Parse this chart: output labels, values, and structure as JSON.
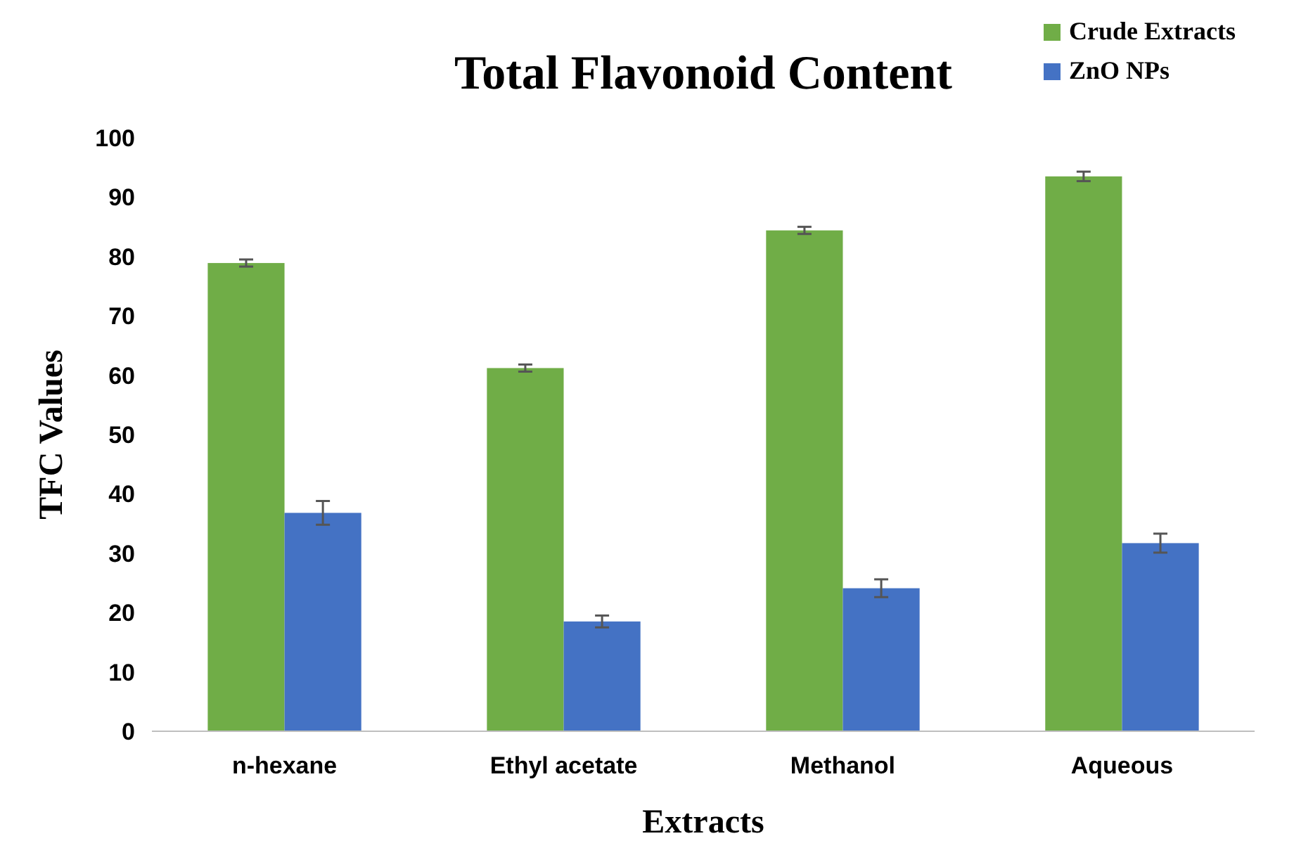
{
  "chart_data": {
    "type": "bar",
    "title": "Total Flavonoid Content",
    "xlabel": "Extracts",
    "ylabel": "TFC Values",
    "categories": [
      "n-hexane",
      "Ethyl acetate",
      "Methanol",
      "Aqueous"
    ],
    "series": [
      {
        "name": "Crude Extracts",
        "color": "#70ad47",
        "values": [
          78.9,
          61.2,
          84.4,
          93.5
        ],
        "errors": [
          0.6,
          0.6,
          0.6,
          0.8
        ]
      },
      {
        "name": "ZnO NPs",
        "color": "#4472c4",
        "values": [
          36.8,
          18.5,
          24.1,
          31.7
        ],
        "errors": [
          2,
          1,
          1.5,
          1.6
        ]
      }
    ],
    "ylim": [
      0,
      100
    ],
    "yticks": [
      0,
      10,
      20,
      30,
      40,
      50,
      60,
      70,
      80,
      90,
      100
    ],
    "grid": false,
    "legend": "top right"
  }
}
